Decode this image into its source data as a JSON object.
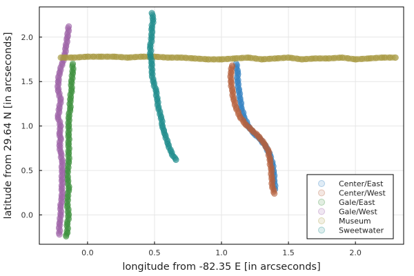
{
  "chart_data": {
    "type": "scatter",
    "xlabel": "longitude from -82.35 E  [in arcseconds]",
    "ylabel": "latitude from 29.64 N [in arcseconds]",
    "xlim": [
      -0.36,
      2.36
    ],
    "ylim": [
      -0.33,
      2.34
    ],
    "xticks": [
      0.0,
      0.5,
      1.0,
      1.5,
      2.0
    ],
    "xtick_labels": [
      "0.0",
      "0.5",
      "1.0",
      "1.5",
      "2.0"
    ],
    "yticks": [
      0.0,
      0.5,
      1.0,
      1.5,
      2.0
    ],
    "ytick_labels": [
      "0.0",
      "0.5",
      "1.0",
      "1.5",
      "2.0"
    ],
    "grid": true,
    "legend_position": "bottom-right",
    "series": [
      {
        "name": "Center/East",
        "color": "#2f7fc1",
        "x": [
          1.11,
          1.12,
          1.12,
          1.13,
          1.14,
          1.15,
          1.17,
          1.2,
          1.24,
          1.29,
          1.33,
          1.36,
          1.38,
          1.39,
          1.395,
          1.4
        ],
        "y": [
          1.7,
          1.6,
          1.5,
          1.4,
          1.3,
          1.2,
          1.1,
          1.0,
          0.92,
          0.85,
          0.77,
          0.68,
          0.58,
          0.48,
          0.38,
          0.29
        ]
      },
      {
        "name": "Center/West",
        "color": "#b5603c",
        "x": [
          1.08,
          1.07,
          1.07,
          1.08,
          1.09,
          1.11,
          1.14,
          1.18,
          1.23,
          1.28,
          1.32,
          1.35,
          1.36,
          1.37,
          1.375,
          1.38,
          1.395
        ],
        "y": [
          1.68,
          1.6,
          1.5,
          1.4,
          1.3,
          1.2,
          1.1,
          1.02,
          0.95,
          0.88,
          0.8,
          0.72,
          0.62,
          0.52,
          0.42,
          0.32,
          0.24
        ]
      },
      {
        "name": "Gale/East",
        "color": "#3a8f3a",
        "x": [
          -0.11,
          -0.11,
          -0.12,
          -0.12,
          -0.13,
          -0.13,
          -0.14,
          -0.14,
          -0.14,
          -0.14,
          -0.14,
          -0.14,
          -0.15,
          -0.15,
          -0.14,
          -0.15,
          -0.15,
          -0.14,
          -0.15,
          -0.15,
          -0.16
        ],
        "y": [
          1.7,
          1.6,
          1.5,
          1.4,
          1.3,
          1.2,
          1.1,
          1.0,
          0.9,
          0.8,
          0.7,
          0.6,
          0.5,
          0.4,
          0.3,
          0.2,
          0.1,
          0.0,
          -0.1,
          -0.2,
          -0.24
        ]
      },
      {
        "name": "Gale/West",
        "color": "#9b5fa5",
        "x": [
          -0.14,
          -0.15,
          -0.16,
          -0.17,
          -0.19,
          -0.21,
          -0.22,
          -0.22,
          -0.2,
          -0.21,
          -0.22,
          -0.2,
          -0.21,
          -0.2,
          -0.21,
          -0.2,
          -0.19,
          -0.19,
          -0.19,
          -0.19,
          -0.19,
          -0.2,
          -0.2,
          -0.21,
          -0.21
        ],
        "y": [
          2.12,
          2.0,
          1.9,
          1.8,
          1.7,
          1.6,
          1.5,
          1.4,
          1.3,
          1.2,
          1.1,
          1.0,
          0.92,
          0.86,
          0.78,
          0.7,
          0.6,
          0.5,
          0.4,
          0.3,
          0.2,
          0.1,
          0.0,
          -0.1,
          -0.22
        ]
      },
      {
        "name": "Museum",
        "color": "#a89a42",
        "x": [
          -0.2,
          -0.1,
          0.0,
          0.1,
          0.2,
          0.3,
          0.4,
          0.5,
          0.6,
          0.7,
          0.8,
          0.9,
          1.0,
          1.1,
          1.2,
          1.3,
          1.4,
          1.5,
          1.6,
          1.7,
          1.8,
          1.9,
          2.0,
          2.1,
          2.2,
          2.3
        ],
        "y": [
          1.77,
          1.77,
          1.78,
          1.78,
          1.78,
          1.77,
          1.78,
          1.78,
          1.77,
          1.77,
          1.76,
          1.75,
          1.75,
          1.76,
          1.77,
          1.75,
          1.76,
          1.77,
          1.75,
          1.76,
          1.76,
          1.77,
          1.75,
          1.76,
          1.77,
          1.77
        ]
      },
      {
        "name": "Sweetwater",
        "color": "#1a8a8a",
        "x": [
          0.48,
          0.49,
          0.48,
          0.48,
          0.47,
          0.47,
          0.48,
          0.48,
          0.49,
          0.51,
          0.52,
          0.53,
          0.55,
          0.56,
          0.57,
          0.58,
          0.6,
          0.62,
          0.64,
          0.66
        ],
        "y": [
          2.27,
          2.2,
          2.1,
          2.0,
          1.9,
          1.8,
          1.7,
          1.6,
          1.5,
          1.4,
          1.3,
          1.2,
          1.1,
          1.0,
          0.95,
          0.9,
          0.8,
          0.72,
          0.66,
          0.62
        ]
      }
    ]
  }
}
